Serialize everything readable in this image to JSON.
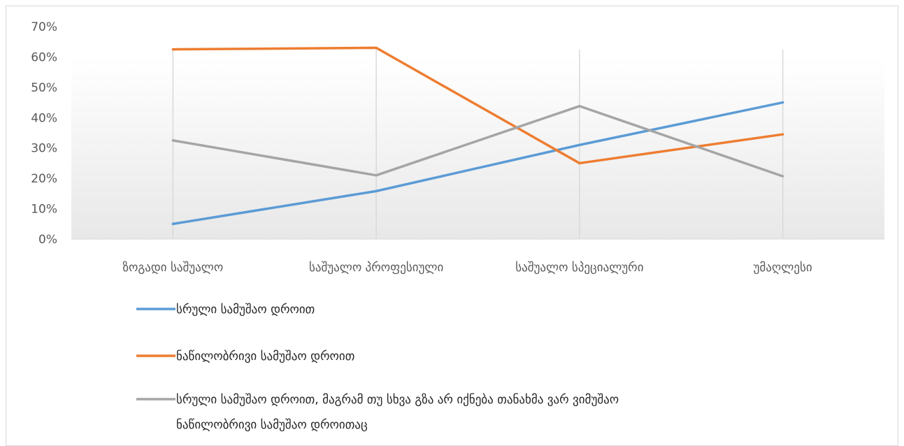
{
  "chart_data": {
    "type": "line",
    "categories": [
      "ზოგადი საშუალო",
      "საშუალო პროფესიული",
      "საშუალო სპეციალური",
      "უმაღლესი"
    ],
    "yticks": [
      "0%",
      "10%",
      "20%",
      "30%",
      "40%",
      "50%",
      "60%",
      "70%"
    ],
    "ylim": [
      0,
      70
    ],
    "grid": true,
    "legend_position": "bottom",
    "series": [
      {
        "name": "სრული სამუშაო დროით",
        "values": [
          5,
          15.8,
          31,
          45
        ],
        "color": "#5b9bd5"
      },
      {
        "name": "ნაწილობრივი სამუშაო დროით",
        "values": [
          62.5,
          63,
          25,
          34.5
        ],
        "color": "#ed7d31"
      },
      {
        "name": "სრული სამუშაო დროით, მაგრამ თუ სხვა გზა არ იქნება თანახმა ვარ ვიმუშაო ნაწილობრივი სამუშაო დროითაც",
        "name_lines": [
          "სრული სამუშაო დროით, მაგრამ თუ სხვა გზა არ იქნება თანახმა ვარ ვიმუშაო",
          "ნაწილობრივი სამუშაო დროითაც"
        ],
        "values": [
          32.5,
          21,
          43.8,
          20.7
        ],
        "color": "#a5a5a5"
      }
    ]
  }
}
